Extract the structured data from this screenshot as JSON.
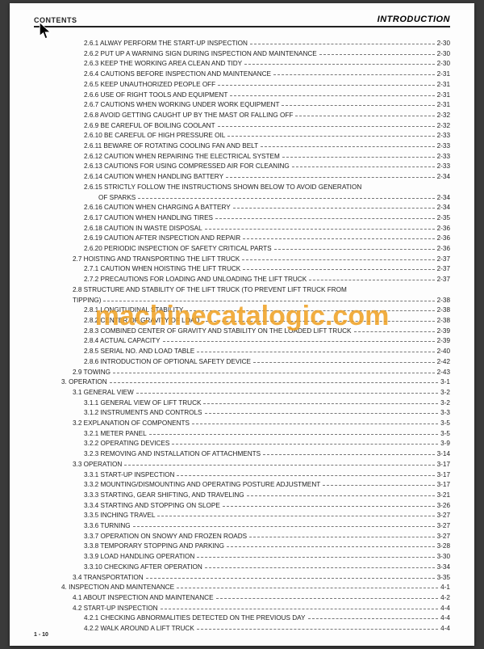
{
  "header": {
    "left": "CONTENTS",
    "right": "INTRODUCTION"
  },
  "footer": "1 - 10",
  "watermark": "machinecatalogic.com",
  "toc": [
    {
      "indent": 3,
      "label": "2.6.1 ALWAY PERFORM THE START-UP INSPECTION",
      "page": "2-30"
    },
    {
      "indent": 3,
      "label": "2.6.2 PUT UP A WARNING SIGN DURING INSPECTION AND MAINTENANCE",
      "page": "2-30"
    },
    {
      "indent": 3,
      "label": "2.6.3 KEEP THE WORKING AREA CLEAN AND TIDY",
      "page": "2-30"
    },
    {
      "indent": 3,
      "label": "2.6.4 CAUTIONS BEFORE INSPECTION AND MAINTENANCE",
      "page": "2-31"
    },
    {
      "indent": 3,
      "label": "2.6.5 KEEP UNAUTHORIZED PEOPLE OFF",
      "page": "2-31"
    },
    {
      "indent": 3,
      "label": "2.6.6 USE OF RIGHT TOOLS AND EQUIPMENT",
      "page": "2-31"
    },
    {
      "indent": 3,
      "label": "2.6.7 CAUTIONS WHEN WORKING UNDER WORK EQUIPMENT",
      "page": "2-31"
    },
    {
      "indent": 3,
      "label": "2.6.8 AVOID GETTING CAUGHT UP BY THE MAST OR FALLING OFF",
      "page": "2-32"
    },
    {
      "indent": 3,
      "label": "2.6.9 BE CAREFUL OF BOILING COOLANT",
      "page": "2-32"
    },
    {
      "indent": 3,
      "label": "2.6.10 BE CAREFUL OF HIGH PRESSURE OIL",
      "page": "2-33"
    },
    {
      "indent": 3,
      "label": "2.6.11 BEWARE OF ROTATING COOLING FAN AND BELT",
      "page": "2-33"
    },
    {
      "indent": 3,
      "label": "2.6.12 CAUTION WHEN REPAIRING THE ELECTRICAL SYSTEM",
      "page": "2-33"
    },
    {
      "indent": 3,
      "label": "2.6.13 CAUTIONS FOR USING COMPRESSED AIR FOR CLEANING",
      "page": "2-33"
    },
    {
      "indent": 3,
      "label": "2.6.14 CAUTION WHEN HANDLING BATTERY",
      "page": "2-34"
    },
    {
      "indent": 3,
      "label": "2.6.15 STRICTLY FOLLOW THE INSTRUCTIONS SHOWN BELOW TO AVOID GENERATION",
      "nopage": true
    },
    {
      "indent": "cont",
      "label": "OF SPARKS",
      "page": "2-34"
    },
    {
      "indent": 3,
      "label": "2.6.16 CAUTION WHEN CHARGING A BATTERY",
      "page": "2-34"
    },
    {
      "indent": 3,
      "label": "2.6.17 CAUTION WHEN HANDLING TIRES",
      "page": "2-35"
    },
    {
      "indent": 3,
      "label": "2.6.18 CAUTION IN WASTE DISPOSAL",
      "page": "2-36"
    },
    {
      "indent": 3,
      "label": "2.6.19 CAUTION AFTER INSPECTION AND REPAIR",
      "page": "2-36"
    },
    {
      "indent": 3,
      "label": "2.6.20 PERIODIC INSPECTION OF SAFETY CRITICAL PARTS",
      "page": "2-36"
    },
    {
      "indent": 2,
      "label": "2.7 HOISTING AND TRANSPORTING THE LIFT TRUCK",
      "page": "2-37"
    },
    {
      "indent": 3,
      "label": "2.7.1 CAUTION WHEN HOISTING THE LIFT TRUCK",
      "page": "2-37"
    },
    {
      "indent": 3,
      "label": "2.7.2 PRECAUTIONS FOR LOADING AND UNLOADING THE LIFT TRUCK",
      "page": "2-37"
    },
    {
      "indent": 2,
      "label": "2.8 STRUCTURE AND STABILITY OF THE LIFT TRUCK (TO PREVENT LIFT TRUCK FROM",
      "nopage": true
    },
    {
      "indent": "cont2",
      "label": "TIPPING)",
      "page": "2-38"
    },
    {
      "indent": 3,
      "label": "2.8.1 LONGITUDINAL STABILITY",
      "page": "2-38"
    },
    {
      "indent": 3,
      "label": "2.8.2 CENTER OF GRAVITY OF LOAD",
      "page": "2-38"
    },
    {
      "indent": 3,
      "label": "2.8.3 COMBINED CENTER OF GRAVITY AND STABILITY ON THE LOADED LIFT TRUCK",
      "page": "2-39"
    },
    {
      "indent": 3,
      "label": "2.8.4 ACTUAL CAPACITY",
      "page": "2-39"
    },
    {
      "indent": 3,
      "label": "2.8.5 SERIAL NO. AND LOAD TABLE",
      "page": "2-40"
    },
    {
      "indent": 3,
      "label": "2.8.6 INTRODUCTION OF OPTIONAL SAFETY DEVICE",
      "page": "2-42"
    },
    {
      "indent": 2,
      "label": "2.9 TOWING",
      "page": "2-43"
    },
    {
      "indent": 1,
      "label": "3. OPERATION",
      "page": "3-1"
    },
    {
      "indent": 2,
      "label": "3.1 GENERAL VIEW",
      "page": "3-2"
    },
    {
      "indent": 3,
      "label": "3.1.1 GENERAL VIEW OF LIFT TRUCK",
      "page": "3-2"
    },
    {
      "indent": 3,
      "label": "3.1.2 INSTRUMENTS AND CONTROLS",
      "page": "3-3"
    },
    {
      "indent": 2,
      "label": "3.2 EXPLANATION OF COMPONENTS",
      "page": "3-5"
    },
    {
      "indent": 3,
      "label": "3.2.1 METER PANEL",
      "page": "3-5"
    },
    {
      "indent": 3,
      "label": "3.2.2 OPERATING DEVICES",
      "page": "3-9"
    },
    {
      "indent": 3,
      "label": "3.2.3 REMOVING AND INSTALLATION OF ATTACHMENTS",
      "page": "3-14"
    },
    {
      "indent": 2,
      "label": "3.3 OPERATION",
      "page": "3-17"
    },
    {
      "indent": 3,
      "label": "3.3.1 START-UP INSPECTION",
      "page": "3-17"
    },
    {
      "indent": 3,
      "label": "3.3.2 MOUNTING/DISMOUNTING AND OPERATING POSTURE ADJUSTMENT",
      "page": "3-17"
    },
    {
      "indent": 3,
      "label": "3.3.3 STARTING, GEAR SHIFTING, AND TRAVELING",
      "page": "3-21"
    },
    {
      "indent": 3,
      "label": "3.3.4 STARTING AND STOPPING ON SLOPE",
      "page": "3-26"
    },
    {
      "indent": 3,
      "label": "3.3.5 INCHING TRAVEL",
      "page": "3-27"
    },
    {
      "indent": 3,
      "label": "3.3.6 TURNING",
      "page": "3-27"
    },
    {
      "indent": 3,
      "label": "3.3.7 OPERATION ON SNOWY AND FROZEN ROADS",
      "page": "3-27"
    },
    {
      "indent": 3,
      "label": "3.3.8 TEMPORARY STOPPING AND PARKING",
      "page": "3-28"
    },
    {
      "indent": 3,
      "label": "3.3.9 LOAD HANDLING OPERATION",
      "page": "3-30"
    },
    {
      "indent": 3,
      "label": "3.3.10 CHECKING AFTER OPERATION",
      "page": "3-34"
    },
    {
      "indent": 2,
      "label": "3.4 TRANSPORTATION",
      "page": "3-35"
    },
    {
      "indent": 1,
      "label": "4. INSPECTION AND MAINTENANCE",
      "page": "4-1"
    },
    {
      "indent": 2,
      "label": "4.1 ABOUT INSPECTION AND MAINTENANCE",
      "page": "4-2"
    },
    {
      "indent": 2,
      "label": "4.2 START-UP INSPECTION",
      "page": "4-4"
    },
    {
      "indent": 3,
      "label": "4.2.1 CHECKING ABNORMALITIES DETECTED ON THE PREVIOUS DAY",
      "page": "4-4"
    },
    {
      "indent": 3,
      "label": "4.2.2 WALK AROUND A LIFT TRUCK",
      "page": "4-4"
    }
  ]
}
